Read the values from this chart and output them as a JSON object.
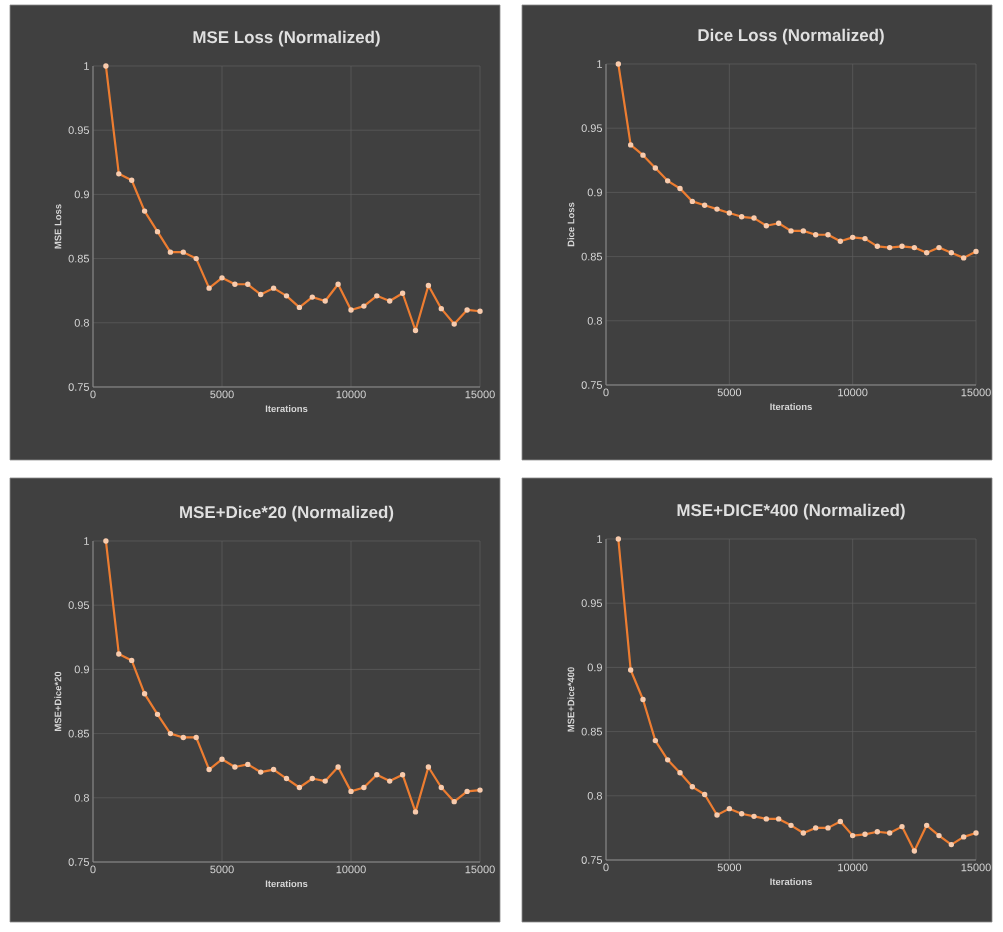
{
  "chart_data": [
    {
      "type": "line",
      "title": "MSE Loss (Normalized)",
      "xlabel": "Iterations",
      "ylabel": "MSE Loss",
      "color": "#ed7d31",
      "marker": "circle",
      "line_style": "solid",
      "grid": true,
      "xlim": [
        0,
        15000
      ],
      "ylim": [
        0.75,
        1
      ],
      "xticks": [
        0,
        5000,
        10000,
        15000
      ],
      "yticks": [
        0.75,
        0.8,
        0.85,
        0.9,
        0.95,
        1
      ],
      "x": [
        500,
        1000,
        1500,
        2000,
        2500,
        3000,
        3500,
        4000,
        4500,
        5000,
        5500,
        6000,
        6500,
        7000,
        7500,
        8000,
        8500,
        9000,
        9500,
        10000,
        10500,
        11000,
        11500,
        12000,
        12500,
        13000,
        13500,
        14000,
        14500,
        15000
      ],
      "values": [
        1,
        0.916,
        0.911,
        0.887,
        0.871,
        0.855,
        0.855,
        0.85,
        0.827,
        0.835,
        0.83,
        0.83,
        0.822,
        0.827,
        0.821,
        0.812,
        0.82,
        0.817,
        0.83,
        0.81,
        0.813,
        0.821,
        0.817,
        0.823,
        0.794,
        0.829,
        0.811,
        0.799,
        0.81,
        0.809
      ]
    },
    {
      "type": "line",
      "title": "Dice Loss (Normalized)",
      "xlabel": "Iterations",
      "ylabel": "Dice Loss",
      "color": "#ed7d31",
      "marker": "circle",
      "line_style": "solid",
      "grid": true,
      "xlim": [
        0,
        15000
      ],
      "ylim": [
        0.75,
        1
      ],
      "xticks": [
        0,
        5000,
        10000,
        15000
      ],
      "yticks": [
        0.75,
        0.8,
        0.85,
        0.9,
        0.95,
        1
      ],
      "x": [
        500,
        1000,
        1500,
        2000,
        2500,
        3000,
        3500,
        4000,
        4500,
        5000,
        5500,
        6000,
        6500,
        7000,
        7500,
        8000,
        8500,
        9000,
        9500,
        10000,
        10500,
        11000,
        11500,
        12000,
        12500,
        13000,
        13500,
        14000,
        14500,
        15000
      ],
      "values": [
        1,
        0.937,
        0.929,
        0.919,
        0.909,
        0.903,
        0.893,
        0.89,
        0.887,
        0.884,
        0.881,
        0.88,
        0.874,
        0.876,
        0.87,
        0.87,
        0.867,
        0.867,
        0.862,
        0.865,
        0.864,
        0.858,
        0.857,
        0.858,
        0.857,
        0.853,
        0.857,
        0.853,
        0.849,
        0.854
      ]
    },
    {
      "type": "line",
      "title": "MSE+Dice*20 (Normalized)",
      "xlabel": "Iterations",
      "ylabel": "MSE+Dice*20",
      "color": "#ed7d31",
      "marker": "circle",
      "line_style": "solid",
      "grid": true,
      "xlim": [
        0,
        15000
      ],
      "ylim": [
        0.75,
        1
      ],
      "xticks": [
        0,
        5000,
        10000,
        15000
      ],
      "yticks": [
        0.75,
        0.8,
        0.85,
        0.9,
        0.95,
        1
      ],
      "x": [
        500,
        1000,
        1500,
        2000,
        2500,
        3000,
        3500,
        4000,
        4500,
        5000,
        5500,
        6000,
        6500,
        7000,
        7500,
        8000,
        8500,
        9000,
        9500,
        10000,
        10500,
        11000,
        11500,
        12000,
        12500,
        13000,
        13500,
        14000,
        14500,
        15000
      ],
      "values": [
        1,
        0.912,
        0.907,
        0.881,
        0.865,
        0.85,
        0.847,
        0.847,
        0.822,
        0.83,
        0.824,
        0.826,
        0.82,
        0.822,
        0.815,
        0.808,
        0.815,
        0.813,
        0.824,
        0.805,
        0.808,
        0.818,
        0.813,
        0.818,
        0.789,
        0.824,
        0.808,
        0.797,
        0.805,
        0.806
      ]
    },
    {
      "type": "line",
      "title": "MSE+DICE*400 (Normalized)",
      "xlabel": "Iterations",
      "ylabel": "MSE+Dice*400",
      "color": "#ed7d31",
      "marker": "circle",
      "line_style": "solid",
      "grid": true,
      "xlim": [
        0,
        15000
      ],
      "ylim": [
        0.75,
        1
      ],
      "xticks": [
        0,
        5000,
        10000,
        15000
      ],
      "yticks": [
        0.75,
        0.8,
        0.85,
        0.9,
        0.95,
        1
      ],
      "x": [
        500,
        1000,
        1500,
        2000,
        2500,
        3000,
        3500,
        4000,
        4500,
        5000,
        5500,
        6000,
        6500,
        7000,
        7500,
        8000,
        8500,
        9000,
        9500,
        10000,
        10500,
        11000,
        11500,
        12000,
        12500,
        13000,
        13500,
        14000,
        14500,
        15000
      ],
      "values": [
        1,
        0.898,
        0.875,
        0.843,
        0.828,
        0.818,
        0.807,
        0.801,
        0.785,
        0.79,
        0.786,
        0.784,
        0.782,
        0.782,
        0.777,
        0.771,
        0.775,
        0.775,
        0.78,
        0.769,
        0.77,
        0.772,
        0.771,
        0.776,
        0.757,
        0.777,
        0.769,
        0.762,
        0.768,
        0.771
      ]
    }
  ]
}
